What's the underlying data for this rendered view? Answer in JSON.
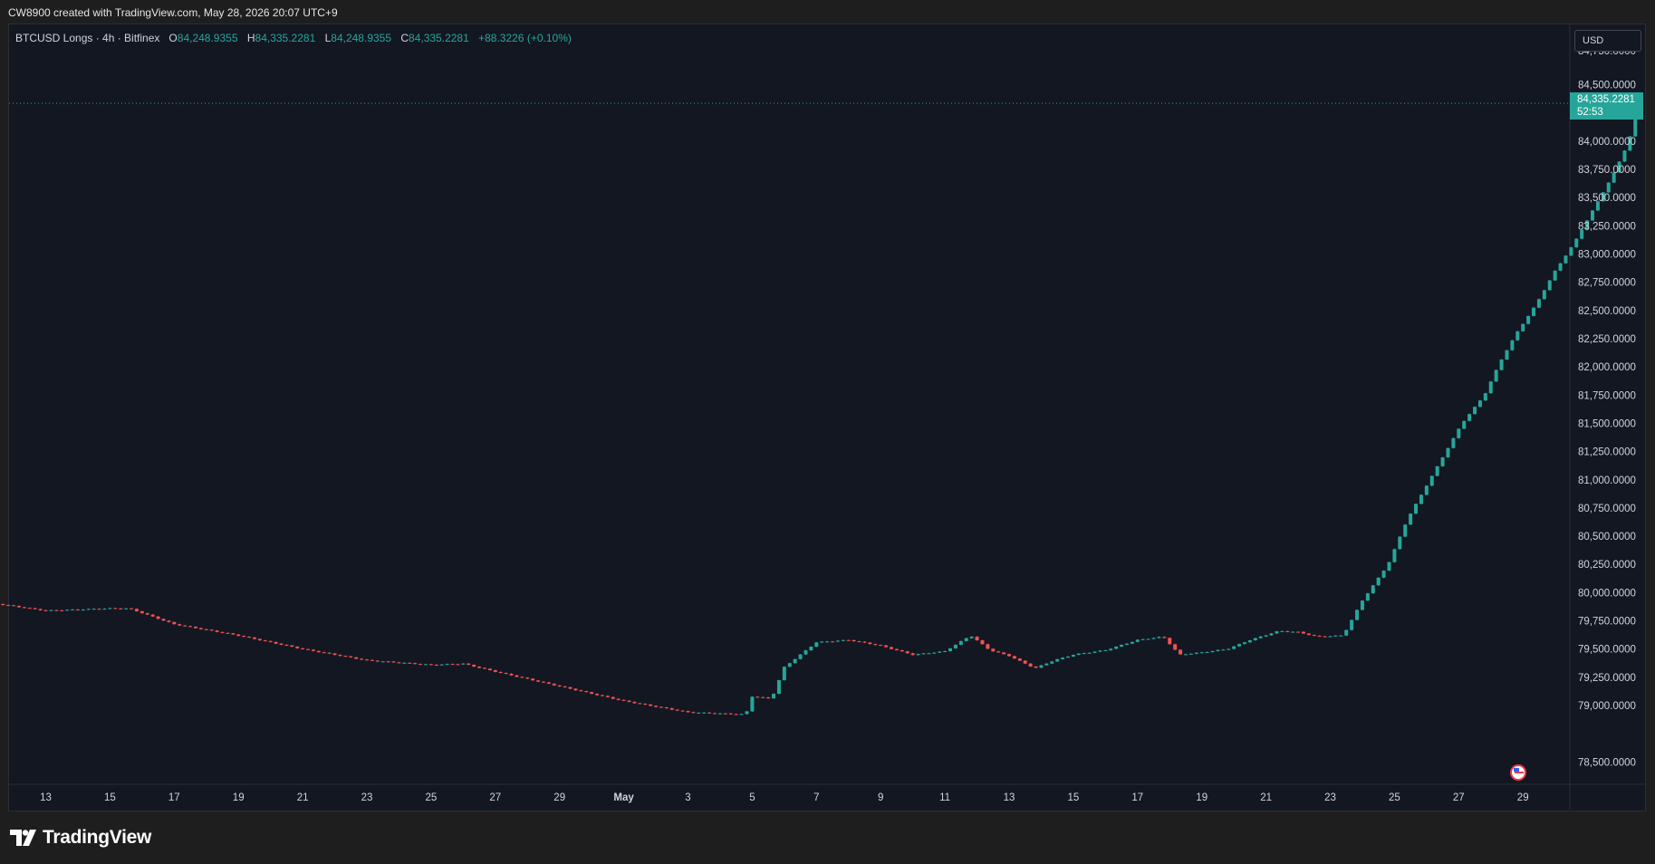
{
  "header": {
    "attribution": "CW8900 created with TradingView.com, May 28, 2026 20:07 UTC+9"
  },
  "legend": {
    "symbol": "BTCUSD Longs · 4h · Bitfinex",
    "open_label": "O",
    "open": "84,248.9355",
    "high_label": "H",
    "high": "84,335.2281",
    "low_label": "L",
    "low": "84,248.9355",
    "close_label": "C",
    "close": "84,335.2281",
    "change": "+88.3226 (+0.10%)"
  },
  "currency": "USD",
  "last_price": {
    "value": "84,335.2281",
    "countdown": "52:53"
  },
  "brand": "TradingView",
  "colors": {
    "up": "#26a69a",
    "down": "#ef5350",
    "background": "#131722",
    "axis_text": "#d1d4dc"
  },
  "chart_data": {
    "type": "candlestick",
    "title": "BTCUSD Longs · 4h · Bitfinex",
    "x_tick_labels": [
      "13",
      "15",
      "17",
      "19",
      "21",
      "23",
      "25",
      "27",
      "29",
      "May",
      "3",
      "5",
      "7",
      "9",
      "11",
      "13",
      "15",
      "17",
      "19",
      "21",
      "23",
      "25",
      "27",
      "29"
    ],
    "y_tick_labels": [
      "84,500.0000",
      "84,000.0000",
      "83,750.0000",
      "83,500.0000",
      "83,250.0000",
      "83,000.0000",
      "82,750.0000",
      "82,500.0000",
      "82,250.0000",
      "82,000.0000",
      "81,750.0000",
      "81,500.0000",
      "81,250.0000",
      "81,000.0000",
      "80,750.0000",
      "80,500.0000",
      "80,250.0000",
      "80,000.0000",
      "79,750.0000",
      "79,500.0000",
      "79,250.0000",
      "79,000.0000",
      "78,500.0000"
    ],
    "y_ticks": [
      84500,
      84000,
      83750,
      83500,
      83250,
      83000,
      82750,
      82500,
      82250,
      82000,
      81750,
      81500,
      81250,
      81000,
      80750,
      80500,
      80250,
      80000,
      79750,
      79500,
      79250,
      79000,
      78500
    ],
    "ylim": [
      78430,
      84810
    ],
    "x_range_days": [
      "Apr 11",
      "May 29"
    ],
    "last_price": 84335.2281,
    "path_points": [
      {
        "t": 0,
        "v": 79920
      },
      {
        "t": 2,
        "v": 79840
      },
      {
        "t": 4,
        "v": 79860
      },
      {
        "t": 4.6,
        "v": 79860
      },
      {
        "t": 6,
        "v": 79720
      },
      {
        "t": 8,
        "v": 79620
      },
      {
        "t": 10,
        "v": 79500
      },
      {
        "t": 12,
        "v": 79400
      },
      {
        "t": 14,
        "v": 79360
      },
      {
        "t": 15,
        "v": 79370
      },
      {
        "t": 16,
        "v": 79300
      },
      {
        "t": 18,
        "v": 79170
      },
      {
        "t": 20,
        "v": 79040
      },
      {
        "t": 22,
        "v": 78940
      },
      {
        "t": 23.8,
        "v": 78920
      },
      {
        "t": 24,
        "v": 79080
      },
      {
        "t": 24.6,
        "v": 79060
      },
      {
        "t": 25,
        "v": 79340
      },
      {
        "t": 26,
        "v": 79560
      },
      {
        "t": 27,
        "v": 79580
      },
      {
        "t": 28,
        "v": 79530
      },
      {
        "t": 29,
        "v": 79450
      },
      {
        "t": 30,
        "v": 79480
      },
      {
        "t": 30.8,
        "v": 79620
      },
      {
        "t": 31.4,
        "v": 79490
      },
      {
        "t": 32,
        "v": 79440
      },
      {
        "t": 32.8,
        "v": 79330
      },
      {
        "t": 33.4,
        "v": 79400
      },
      {
        "t": 34,
        "v": 79450
      },
      {
        "t": 35,
        "v": 79490
      },
      {
        "t": 36,
        "v": 79580
      },
      {
        "t": 36.8,
        "v": 79610
      },
      {
        "t": 37.3,
        "v": 79450
      },
      {
        "t": 38,
        "v": 79470
      },
      {
        "t": 38.8,
        "v": 79500
      },
      {
        "t": 39.5,
        "v": 79580
      },
      {
        "t": 40.4,
        "v": 79660
      },
      {
        "t": 41,
        "v": 79650
      },
      {
        "t": 41.6,
        "v": 79610
      },
      {
        "t": 42.4,
        "v": 79620
      },
      {
        "t": 43,
        "v": 79930
      },
      {
        "t": 43.8,
        "v": 80250
      },
      {
        "t": 44.4,
        "v": 80650
      },
      {
        "t": 45.2,
        "v": 81050
      },
      {
        "t": 46.1,
        "v": 81500
      },
      {
        "t": 46.8,
        "v": 81750
      },
      {
        "t": 47.3,
        "v": 82050
      },
      {
        "t": 47.8,
        "v": 82300
      },
      {
        "t": 48.4,
        "v": 82550
      },
      {
        "t": 49,
        "v": 82850
      },
      {
        "t": 49.6,
        "v": 83100
      },
      {
        "t": 50.2,
        "v": 83400
      },
      {
        "t": 50.8,
        "v": 83700
      },
      {
        "t": 51.3,
        "v": 84000
      },
      {
        "t": 51.5,
        "v": 84250
      },
      {
        "t": 51.6,
        "v": 84335
      }
    ]
  }
}
